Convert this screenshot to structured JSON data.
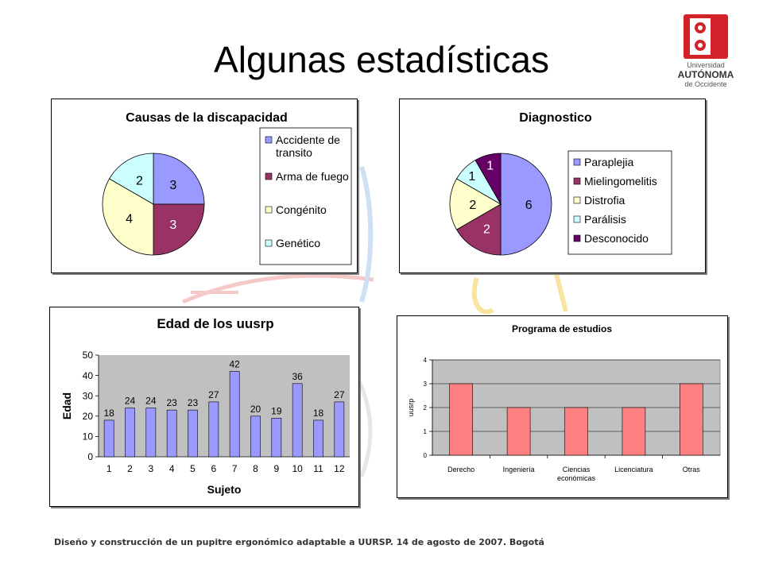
{
  "slide": {
    "title": "Algunas estadísticas",
    "footer": "Diseño y construcción de un pupitre ergonómico adaptable a UURSP. 14 de agosto de 2007. Bogotá"
  },
  "logo": {
    "lines": [
      "Universidad",
      "AUTÓNOMA",
      "de Occidente"
    ],
    "color": "#d2232a"
  },
  "chart_data": [
    {
      "type": "pie",
      "title": "Causas de la discapacidad",
      "legend_position": "right",
      "slices": [
        {
          "name": "Accidente de transito",
          "legend_lines": [
            "Accidente de",
            "transito"
          ],
          "value": 3,
          "color": "#9999ff"
        },
        {
          "name": "Arma de fuego",
          "legend_lines": [
            "Arma de fuego"
          ],
          "value": 3,
          "color": "#993366"
        },
        {
          "name": "Congénito",
          "legend_lines": [
            "Congénito"
          ],
          "value": 4,
          "color": "#ffffcc"
        },
        {
          "name": "Genético",
          "legend_lines": [
            "Genético"
          ],
          "value": 2,
          "color": "#ccffff"
        }
      ]
    },
    {
      "type": "pie",
      "title": "Diagnostico",
      "legend_position": "right",
      "slices": [
        {
          "name": "Paraplejia",
          "value": 6,
          "color": "#9999ff"
        },
        {
          "name": "Mielingomelitis",
          "value": 2,
          "color": "#993366"
        },
        {
          "name": "Distrofia",
          "value": 2,
          "color": "#ffffcc"
        },
        {
          "name": "Parálisis",
          "value": 1,
          "color": "#ccffff"
        },
        {
          "name": "Desconocido",
          "value": 1,
          "color": "#660066"
        }
      ]
    },
    {
      "type": "bar",
      "title": "Edad de los uusrp",
      "xlabel": "Sujeto",
      "ylabel": "Edad",
      "categories": [
        "1",
        "2",
        "3",
        "4",
        "5",
        "6",
        "7",
        "8",
        "9",
        "10",
        "11",
        "12"
      ],
      "values": [
        18,
        24,
        24,
        23,
        23,
        27,
        42,
        20,
        19,
        36,
        18,
        27
      ],
      "ylim": [
        0,
        50
      ],
      "yticks": [
        0,
        10,
        20,
        30,
        40,
        50
      ],
      "bar_color": "#9999ff",
      "plot_bg": "#c0c0c0",
      "grid": false,
      "data_labels": true
    },
    {
      "type": "bar",
      "title": "Programa de estudios",
      "ylabel": "uusrp",
      "categories": [
        "Derecho",
        "Ingeniería",
        "Ciencias económicas",
        "Licenciatura",
        "Otras"
      ],
      "category_lines": [
        [
          "Derecho"
        ],
        [
          "Ingeniería"
        ],
        [
          "Ciencias",
          "económicas"
        ],
        [
          "Licenciatura"
        ],
        [
          "Otras"
        ]
      ],
      "values": [
        3,
        2,
        2,
        2,
        3
      ],
      "ylim": [
        0,
        4
      ],
      "yticks": [
        0,
        1,
        2,
        3,
        4
      ],
      "bar_color": "#ff8080",
      "plot_bg": "#c0c0c0",
      "grid": true
    }
  ]
}
